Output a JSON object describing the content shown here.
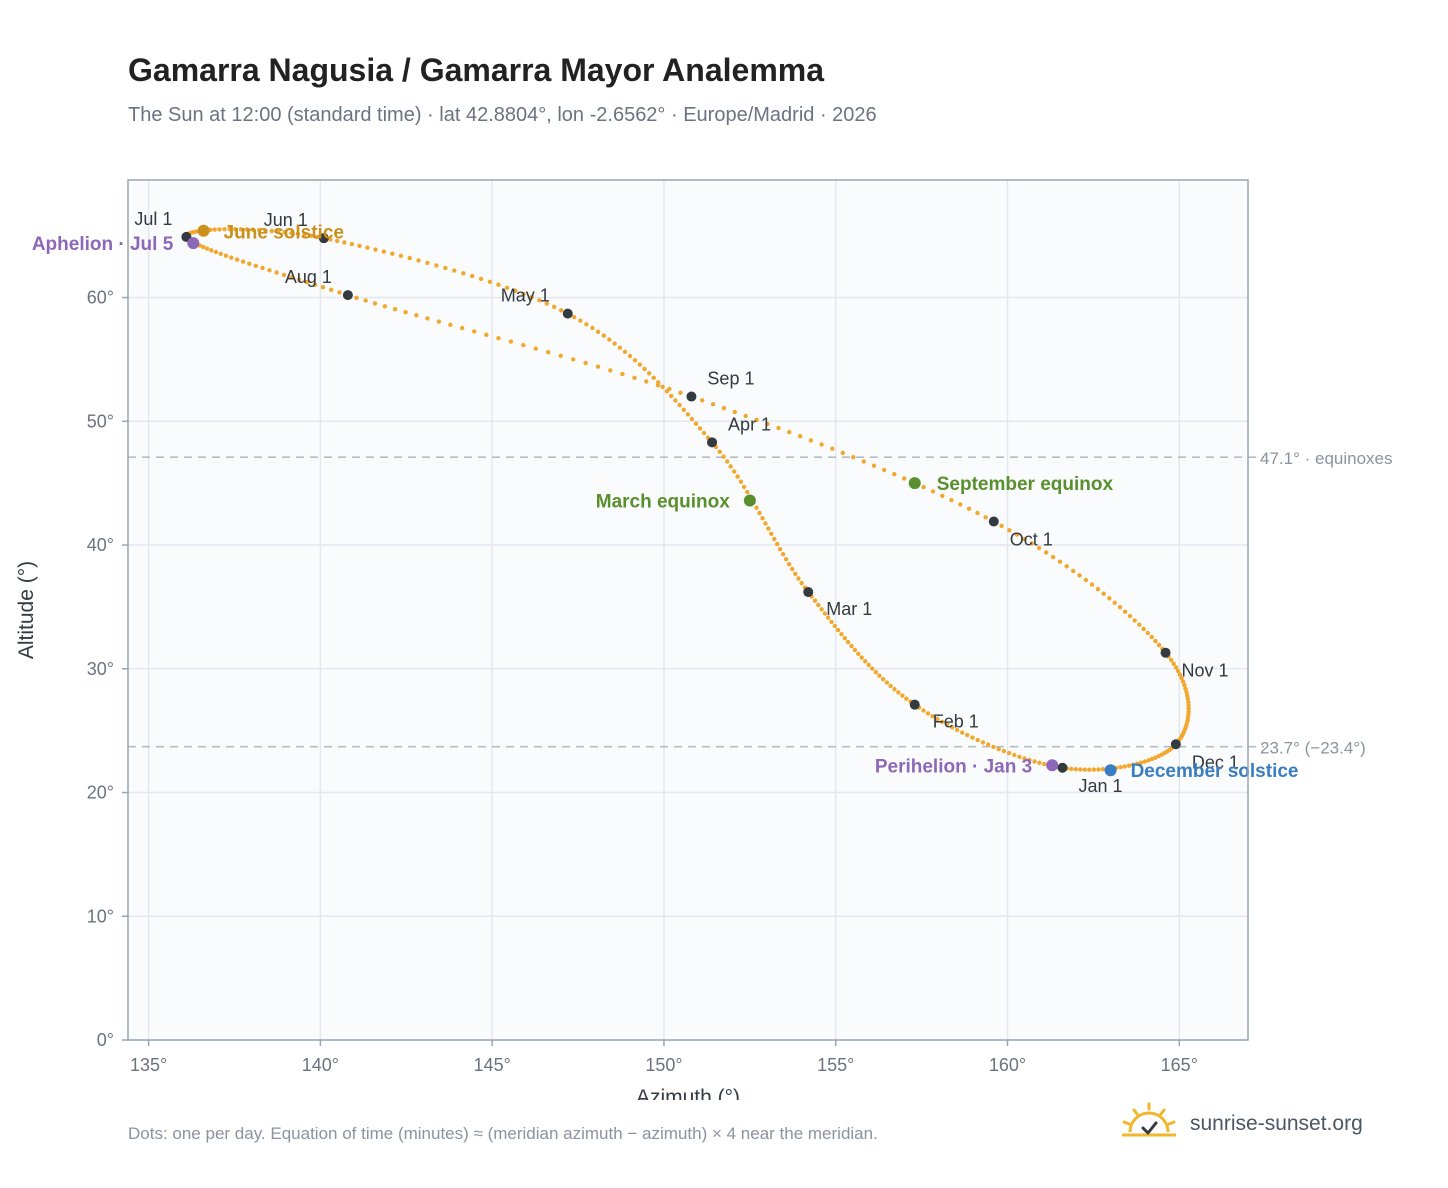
{
  "header": {
    "title": "Gamarra Nagusia / Gamarra Mayor Analemma",
    "subtitle": "The Sun at 12:00 (standard time) · lat 42.8804°, lon -2.6562° · Europe/Madrid · 2026"
  },
  "footer": {
    "note": "Dots: one per day. Equation of time (minutes) ≈ (meridian azimuth − azimuth) × 4 near the meridian.",
    "brand": "sunrise-sunset.org",
    "brand_icon": "sun-logo-icon"
  },
  "colors": {
    "curve": "#f2a72e",
    "month_dot": "#333a40",
    "equinox": "#5a8f2e",
    "june_solstice": "#c9911c",
    "december_solstice": "#3a7dc0",
    "apsis": "#8e68b8",
    "reference_line": "#b4bcc6",
    "plot_bg": "#f9fbfd",
    "grid": "#e3e8ee"
  },
  "chart_data": {
    "type": "scatter",
    "xlabel": "Azimuth (°)",
    "ylabel": "Altitude (°)",
    "xlim": [
      134.4,
      167
    ],
    "ylim": [
      0,
      69.5
    ],
    "xticks": [
      135,
      140,
      145,
      150,
      155,
      160,
      165
    ],
    "yticks": [
      0,
      10,
      20,
      30,
      40,
      50,
      60
    ],
    "x_tick_labels": [
      "135°",
      "140°",
      "145°",
      "150°",
      "155°",
      "160°",
      "165°"
    ],
    "y_tick_labels": [
      "0°",
      "10°",
      "20°",
      "30°",
      "40°",
      "50°",
      "60°"
    ],
    "grid": true,
    "month_points": [
      {
        "label": "Jan 1",
        "az": 161.6,
        "alt": 22.0
      },
      {
        "label": "Feb 1",
        "az": 157.3,
        "alt": 27.1
      },
      {
        "label": "Mar 1",
        "az": 154.2,
        "alt": 36.2
      },
      {
        "label": "Apr 1",
        "az": 151.4,
        "alt": 48.3
      },
      {
        "label": "May 1",
        "az": 147.2,
        "alt": 58.7
      },
      {
        "label": "Jun 1",
        "az": 140.1,
        "alt": 64.8
      },
      {
        "label": "Jul 1",
        "az": 136.1,
        "alt": 64.9
      },
      {
        "label": "Aug 1",
        "az": 140.8,
        "alt": 60.2
      },
      {
        "label": "Sep 1",
        "az": 150.8,
        "alt": 52.0
      },
      {
        "label": "Oct 1",
        "az": 159.6,
        "alt": 41.9
      },
      {
        "label": "Nov 1",
        "az": 164.6,
        "alt": 31.3
      },
      {
        "label": "Dec 1",
        "az": 164.9,
        "alt": 23.9
      }
    ],
    "events": [
      {
        "label": "March equinox",
        "az": 152.5,
        "alt": 43.6,
        "kind": "equinox"
      },
      {
        "label": "September equinox",
        "az": 157.3,
        "alt": 45.0,
        "kind": "equinox"
      },
      {
        "label": "June solstice",
        "az": 136.6,
        "alt": 65.4,
        "kind": "june_solstice"
      },
      {
        "label": "December solstice",
        "az": 163.0,
        "alt": 21.8,
        "kind": "december_solstice"
      },
      {
        "label": "Aphelion · Jul 5",
        "az": 136.3,
        "alt": 64.4,
        "kind": "apsis"
      },
      {
        "label": "Perihelion · Jan 3",
        "az": 161.3,
        "alt": 22.2,
        "kind": "apsis"
      }
    ],
    "reference_lines": [
      {
        "label": "47.1° · equinoxes",
        "alt": 47.1
      },
      {
        "label": "23.7° (−23.4°)",
        "alt": 23.7
      }
    ]
  }
}
